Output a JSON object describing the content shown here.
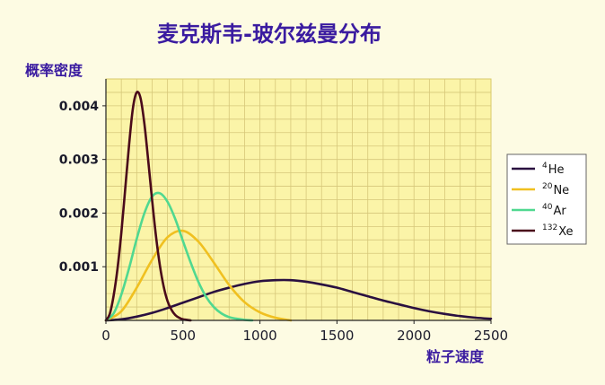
{
  "chart_data": {
    "type": "line",
    "title": "麦克斯韦-玻尔兹曼分布",
    "ylabel": "概率密度",
    "xlabel": "粒子速度",
    "xlim": [
      0,
      2500
    ],
    "ylim": [
      0,
      0.0045
    ],
    "x_ticks": [
      0,
      500,
      1000,
      1500,
      2000,
      2500
    ],
    "y_ticks": [
      0.001,
      0.002,
      0.003,
      0.004
    ],
    "y_tick_labels": [
      "0.001",
      "0.002",
      "0.003",
      "0.004"
    ],
    "grid": true,
    "legend_position": "right",
    "series": [
      {
        "name": "4He",
        "mass_superscript": "4",
        "element": "He",
        "color": "#2a1040",
        "x": [
          0,
          100,
          200,
          300,
          400,
          500,
          600,
          700,
          800,
          900,
          1000,
          1100,
          1200,
          1300,
          1400,
          1500,
          1600,
          1700,
          1800,
          1900,
          2000,
          2100,
          2200,
          2300,
          2400,
          2500
        ],
        "y": [
          0,
          2e-05,
          7e-05,
          0.00014,
          0.00023,
          0.00033,
          0.00043,
          0.00053,
          0.00061,
          0.00068,
          0.00073,
          0.00075,
          0.00075,
          0.00072,
          0.00067,
          0.00061,
          0.00053,
          0.00045,
          0.00037,
          0.0003,
          0.00023,
          0.00017,
          0.00012,
          8e-05,
          5e-05,
          3e-05
        ]
      },
      {
        "name": "20Ne",
        "mass_superscript": "20",
        "element": "Ne",
        "color": "#f0c020",
        "x": [
          0,
          100,
          200,
          300,
          400,
          500,
          600,
          700,
          800,
          900,
          1000,
          1100,
          1200
        ],
        "y": [
          0,
          0.00017,
          0.00061,
          0.00113,
          0.00155,
          0.00167,
          0.00147,
          0.00108,
          0.00066,
          0.00034,
          0.00015,
          5e-05,
          0
        ]
      },
      {
        "name": "40Ar",
        "mass_superscript": "40",
        "element": "Ar",
        "color": "#50d890",
        "x": [
          0,
          50,
          100,
          150,
          200,
          250,
          300,
          350,
          400,
          450,
          500,
          550,
          600,
          650,
          700,
          750,
          800,
          850,
          900,
          950
        ],
        "y": [
          0,
          0.00013,
          0.00048,
          0.00097,
          0.00152,
          0.002,
          0.00231,
          0.00237,
          0.00221,
          0.00189,
          0.00148,
          0.00108,
          0.00072,
          0.00044,
          0.00025,
          0.00013,
          6e-05,
          3e-05,
          1e-05,
          0
        ]
      },
      {
        "name": "132Xe",
        "mass_superscript": "132",
        "element": "Xe",
        "color": "#4a0a1a",
        "x": [
          0,
          25,
          50,
          75,
          100,
          125,
          150,
          175,
          200,
          225,
          250,
          275,
          300,
          325,
          350,
          375,
          400,
          425,
          450,
          475,
          500,
          550
        ],
        "y": [
          0,
          0.00012,
          0.00046,
          0.00096,
          0.00163,
          0.00244,
          0.00326,
          0.00395,
          0.00425,
          0.00414,
          0.00366,
          0.00297,
          0.00224,
          0.00157,
          0.00103,
          0.00063,
          0.00036,
          0.0002,
          0.0001,
          5e-05,
          2e-05,
          0
        ]
      }
    ]
  }
}
